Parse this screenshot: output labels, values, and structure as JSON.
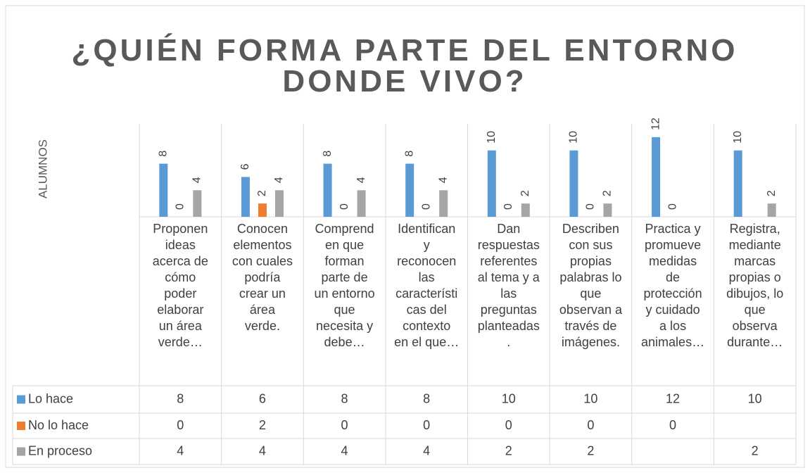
{
  "chart_data": {
    "type": "bar",
    "title": "¿QUIÉN FORMA PARTE DEL ENTORNO DONDE VIVO?",
    "y_label": "ALUMNOS",
    "categories": [
      "Proponen\nideas\nacerca de\ncómo\npoder\nelaborar\nun área\nverde…",
      "Conocen\nelementos\ncon cuales\npodría\ncrear un\nárea\nverde.",
      "Comprend\nen que\nforman\nparte de\nun entorno\nque\nnecesita y\ndebe…",
      "Identifican\ny\nreconocen\nlas\ncaracterísti\ncas del\ncontexto\nen el que…",
      "Dan\nrespuestas\nreferentes\nal tema y a\nlas\npreguntas\nplanteadas\n.",
      "Describen\ncon sus\npropias\npalabras lo\nque\nobservan a\ntravés de\nimágenes.",
      "Practica y\npromueve\nmedidas\nde\nprotección\ny cuidado\na los\nanimales…",
      "Registra,\nmediante\nmarcas\npropias o\ndibujos, lo\nque\nobserva\ndurante…"
    ],
    "series": [
      {
        "name": "Lo hace",
        "color": "#5b9bd5",
        "values": [
          8,
          6,
          8,
          8,
          10,
          10,
          12,
          10
        ]
      },
      {
        "name": "No lo hace",
        "color": "#ed7d31",
        "values": [
          0,
          2,
          0,
          0,
          0,
          0,
          0,
          null
        ]
      },
      {
        "name": "En proceso",
        "color": "#a5a5a5",
        "values": [
          4,
          4,
          4,
          4,
          2,
          2,
          null,
          2
        ]
      }
    ],
    "ylim": [
      0,
      14
    ],
    "data_table": true
  }
}
